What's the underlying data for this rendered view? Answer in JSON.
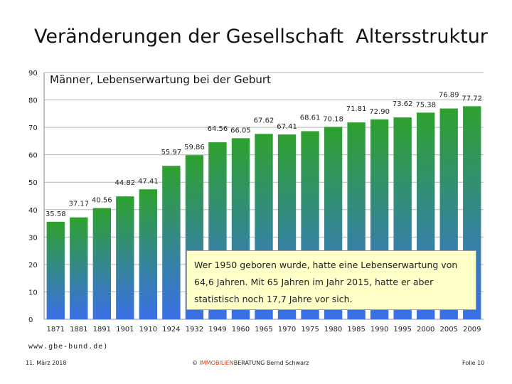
{
  "slide_title": "Veränderungen der Gesellschaft  Altersstruktur",
  "chart_data": {
    "type": "bar",
    "title": "Männer, Lebenserwartung bei der Geburt",
    "categories": [
      "1871",
      "1881",
      "1891",
      "1901",
      "1910",
      "1924",
      "1932",
      "1949",
      "1960",
      "1965",
      "1970",
      "1975",
      "1980",
      "1985",
      "1990",
      "1995",
      "2000",
      "2005",
      "2009"
    ],
    "values": [
      35.58,
      37.17,
      40.56,
      44.82,
      47.41,
      55.97,
      59.86,
      64.56,
      66.05,
      67.62,
      67.41,
      68.61,
      70.18,
      71.81,
      72.9,
      73.62,
      75.38,
      76.89,
      77.72
    ],
    "value_labels": [
      "35.58",
      "37.17",
      "40.56",
      "44.82",
      "47.41",
      "55.97",
      "59.86",
      "64.56",
      "66.05",
      "67.62",
      "67.41",
      "68.61",
      "70.18",
      "71.81",
      "72.90",
      "73.62",
      "75.38",
      "76.89",
      "77.72"
    ],
    "ylim": [
      0,
      90
    ],
    "yticks": [
      "0",
      "10",
      "20",
      "30",
      "40",
      "50",
      "60",
      "70",
      "80",
      "90"
    ],
    "xlabel": "",
    "ylabel": "",
    "grid": true,
    "bar_colors": {
      "top": "#2ea12e",
      "bottom": "#3a6fe8"
    }
  },
  "callout": {
    "text": "Wer 1950 geboren wurde, hatte eine Lebenserwartung von 64,6 Jahren. Mit 65 Jahren im Jahr 2015, hatte er aber statistisch noch 17,7 Jahre vor sich."
  },
  "source": "www.gbe-bund.de)",
  "footer": {
    "date": "11. März 2018",
    "copyright_prefix": "© ",
    "brand_accent": "IMMOBILIEN",
    "brand_rest": "BERATUNG  Bernd Schwarz",
    "page": "Folie 10"
  }
}
